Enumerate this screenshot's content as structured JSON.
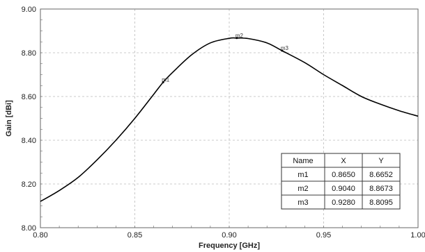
{
  "chart_data": {
    "type": "line",
    "title": "",
    "xlabel": "Frequency [GHz]",
    "ylabel": "Gain [dBi]",
    "xlim": [
      0.8,
      1.0
    ],
    "ylim": [
      8.0,
      9.0
    ],
    "grid": true,
    "x_ticks": [
      "0.80",
      "0.85",
      "0.90",
      "0.95",
      "1.00"
    ],
    "y_ticks": [
      "8.00",
      "8.20",
      "8.40",
      "8.60",
      "8.80",
      "9.00"
    ],
    "series": [
      {
        "color": "#000000",
        "x": [
          0.8,
          0.81,
          0.82,
          0.83,
          0.84,
          0.85,
          0.86,
          0.865,
          0.87,
          0.88,
          0.89,
          0.9,
          0.904,
          0.91,
          0.92,
          0.928,
          0.94,
          0.95,
          0.96,
          0.97,
          0.98,
          0.99,
          1.0
        ],
        "y": [
          8.12,
          8.17,
          8.23,
          8.31,
          8.4,
          8.5,
          8.61,
          8.6652,
          8.71,
          8.79,
          8.845,
          8.866,
          8.8673,
          8.865,
          8.845,
          8.8095,
          8.755,
          8.7,
          8.65,
          8.6,
          8.565,
          8.535,
          8.51
        ]
      }
    ],
    "markers": [
      {
        "name": "m1",
        "x": 0.865,
        "y": 8.6652
      },
      {
        "name": "m2",
        "x": 0.904,
        "y": 8.8673
      },
      {
        "name": "m3",
        "x": 0.928,
        "y": 8.8095
      }
    ],
    "marker_table": {
      "headers": [
        "Name",
        "X",
        "Y"
      ],
      "rows": [
        [
          "m1",
          "0.8650",
          "8.6652"
        ],
        [
          "m2",
          "0.9040",
          "8.8673"
        ],
        [
          "m3",
          "0.9280",
          "8.8095"
        ]
      ]
    }
  }
}
